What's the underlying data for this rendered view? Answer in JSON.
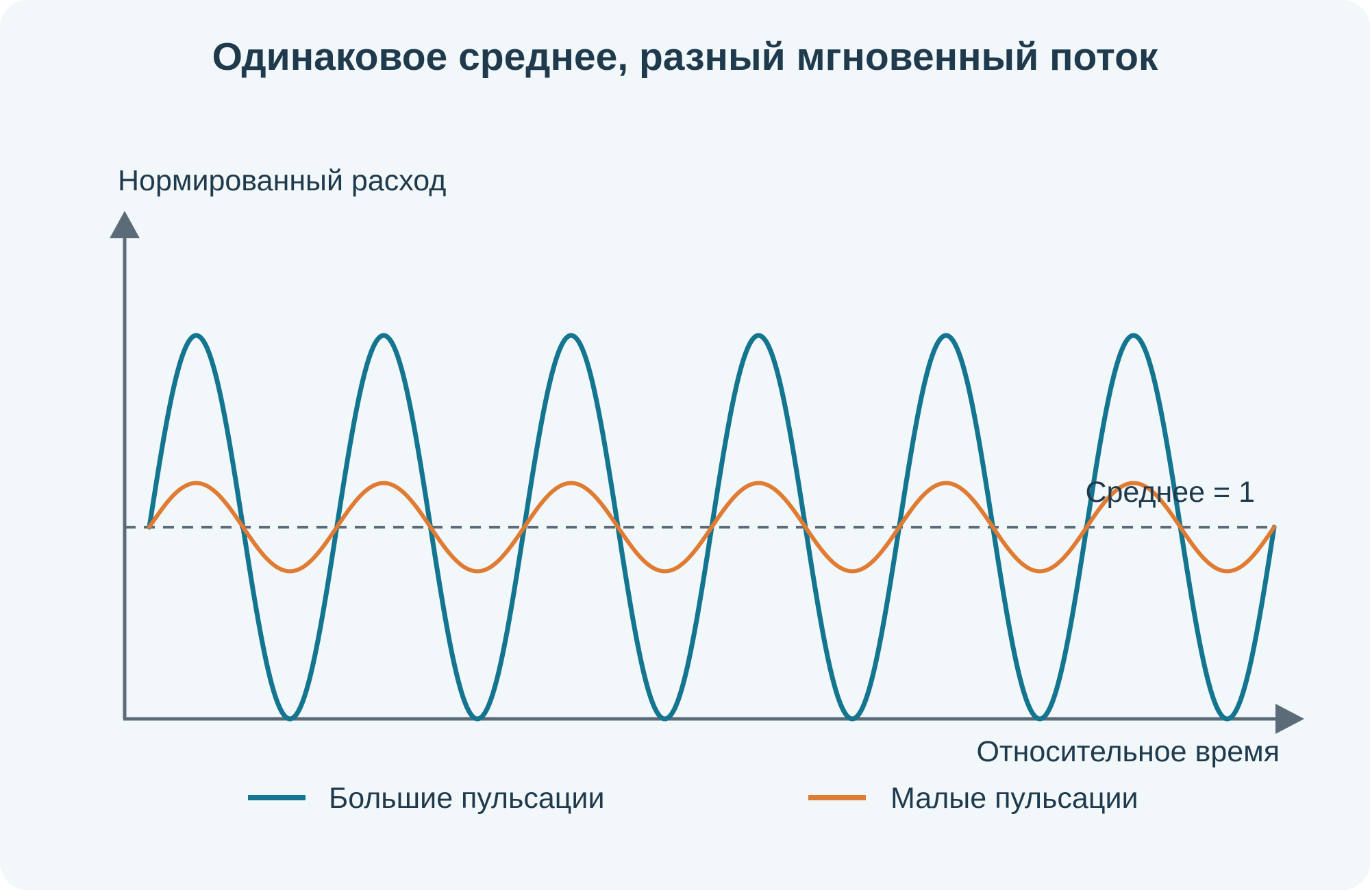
{
  "chart_data": {
    "type": "line",
    "title": "Одинаковое среднее, разный мгновенный поток",
    "xlabel": "Относительное время",
    "ylabel": "Нормированный расход",
    "grid": false,
    "legend_position": "bottom",
    "annotation": "Среднее = 1",
    "mean": 1,
    "periods": 6,
    "x_range": [
      0,
      6
    ],
    "ylim": [
      0,
      2.35
    ],
    "series": [
      {
        "name": "Большие пульсации",
        "amplitude": 1.0,
        "mean": 1,
        "color": "#13758f"
      },
      {
        "name": "Малые пульсации",
        "amplitude": 0.23,
        "mean": 1,
        "color": "#e07b33"
      }
    ],
    "colors": {
      "axis": "#5c6b78",
      "mean_line": "#5c6b78",
      "text": "#1f3a4d",
      "background": "#f2f7f9"
    }
  }
}
